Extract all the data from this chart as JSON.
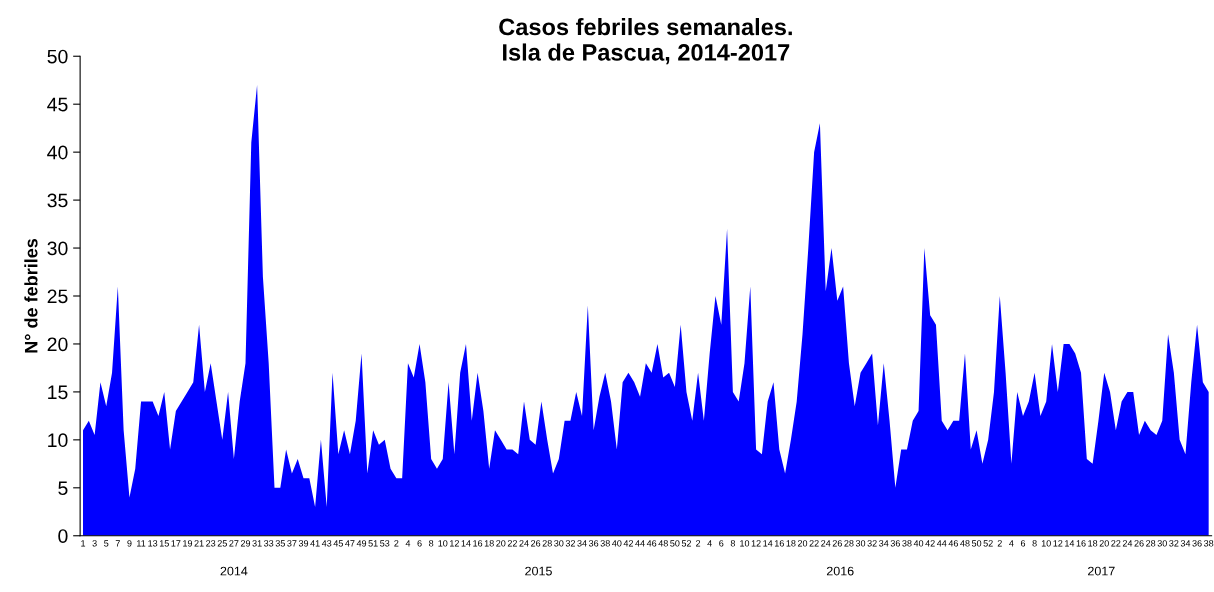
{
  "chart_data": {
    "type": "area",
    "title": "Casos febriles semanales.\nIsla de Pascua, 2014-2017",
    "ylabel": "N° de febriles",
    "categories": [
      "1",
      null,
      "3",
      null,
      "5",
      null,
      "7",
      null,
      "9",
      null,
      "11",
      null,
      "13",
      null,
      "15",
      null,
      "17",
      null,
      "19",
      null,
      "21",
      null,
      "23",
      null,
      "25",
      null,
      "27",
      null,
      "29",
      null,
      "31",
      null,
      "33",
      null,
      "35",
      null,
      "37",
      null,
      "39",
      null,
      "41",
      null,
      "43",
      null,
      "45",
      null,
      "47",
      null,
      "49",
      null,
      "51",
      null,
      "53",
      null,
      "2",
      null,
      "4",
      null,
      "6",
      null,
      "8",
      null,
      "10",
      null,
      "12",
      null,
      "14",
      null,
      "16",
      null,
      "18",
      null,
      "20",
      null,
      "22",
      null,
      "24",
      null,
      "26",
      null,
      "28",
      null,
      "30",
      null,
      "32",
      null,
      "34",
      null,
      "36",
      null,
      "38",
      null,
      "40",
      null,
      "42",
      null,
      "44",
      null,
      "46",
      null,
      "48",
      null,
      "50",
      null,
      "52",
      null,
      "2",
      null,
      "4",
      null,
      "6",
      null,
      "8",
      null,
      "10",
      null,
      "12",
      null,
      "14",
      null,
      "16",
      null,
      "18",
      null,
      "20",
      null,
      "22",
      null,
      "24",
      null,
      "26",
      null,
      "28",
      null,
      "30",
      null,
      "32",
      null,
      "34",
      null,
      "36",
      null,
      "38",
      null,
      "40",
      null,
      "42",
      null,
      "44",
      null,
      "46",
      null,
      "48",
      null,
      "50",
      null,
      "52",
      null,
      "2",
      null,
      "4",
      null,
      "6",
      null,
      "8",
      null,
      "10",
      null,
      "12",
      null,
      "14",
      null,
      "16",
      null,
      "18",
      null,
      "20",
      null,
      "22",
      null,
      "24",
      null,
      "26",
      null,
      "28",
      null,
      "30",
      null,
      "32",
      null,
      "34",
      null,
      "36",
      null,
      "38"
    ],
    "series": [
      {
        "color": "#0000ff",
        "values": [
          11,
          12,
          10.5,
          16,
          13.5,
          17,
          26,
          11,
          4,
          7,
          14,
          14,
          14,
          12.5,
          15,
          9,
          13,
          14,
          15,
          16,
          22,
          15,
          18,
          14,
          10,
          15,
          8,
          14,
          18,
          41,
          47,
          27,
          18,
          5,
          5,
          9,
          6.5,
          8,
          6,
          6,
          3,
          10,
          3,
          17,
          8.5,
          11,
          8.5,
          12,
          19,
          6.5,
          11,
          9.5,
          10,
          7,
          6,
          6,
          18,
          16.5,
          20,
          16,
          8,
          7,
          8,
          16,
          8.5,
          17,
          20,
          12,
          17,
          13,
          7,
          11,
          10,
          9,
          9,
          8.5,
          14,
          10,
          9.5,
          14,
          10,
          6.5,
          8,
          12,
          12,
          15,
          12.5,
          24,
          11,
          14.5,
          17,
          14,
          9,
          16,
          17,
          16,
          14.5,
          18,
          17,
          20,
          16.5,
          17,
          15.5,
          22,
          15,
          12,
          17,
          12,
          19,
          25,
          22,
          32,
          15,
          14,
          18,
          26,
          9,
          8.5,
          14,
          16,
          9,
          6.5,
          10,
          14,
          21,
          30,
          40,
          43,
          25.5,
          30,
          24.5,
          26,
          18,
          13.5,
          17,
          18,
          19,
          11.5,
          18,
          12,
          5,
          9,
          9,
          12,
          13,
          30,
          23,
          22,
          12,
          11,
          12,
          12,
          19,
          9,
          11,
          7.5,
          10,
          15,
          25,
          17,
          7.5,
          15,
          12.5,
          14,
          17,
          12.5,
          14,
          20,
          15,
          20,
          20,
          19,
          17,
          8,
          7.5,
          12,
          17,
          15,
          11,
          14,
          15,
          15,
          10.5,
          12,
          11,
          10.5,
          12,
          21,
          17,
          10,
          8.5,
          16,
          22,
          16,
          15
        ]
      }
    ],
    "annotations": [
      "2014",
      "2015",
      "2016",
      "2017"
    ],
    "ylim": [
      0,
      50
    ],
    "yticks": [
      0,
      5,
      10,
      15,
      20,
      25,
      30,
      35,
      40,
      45,
      50
    ],
    "grid": false
  }
}
